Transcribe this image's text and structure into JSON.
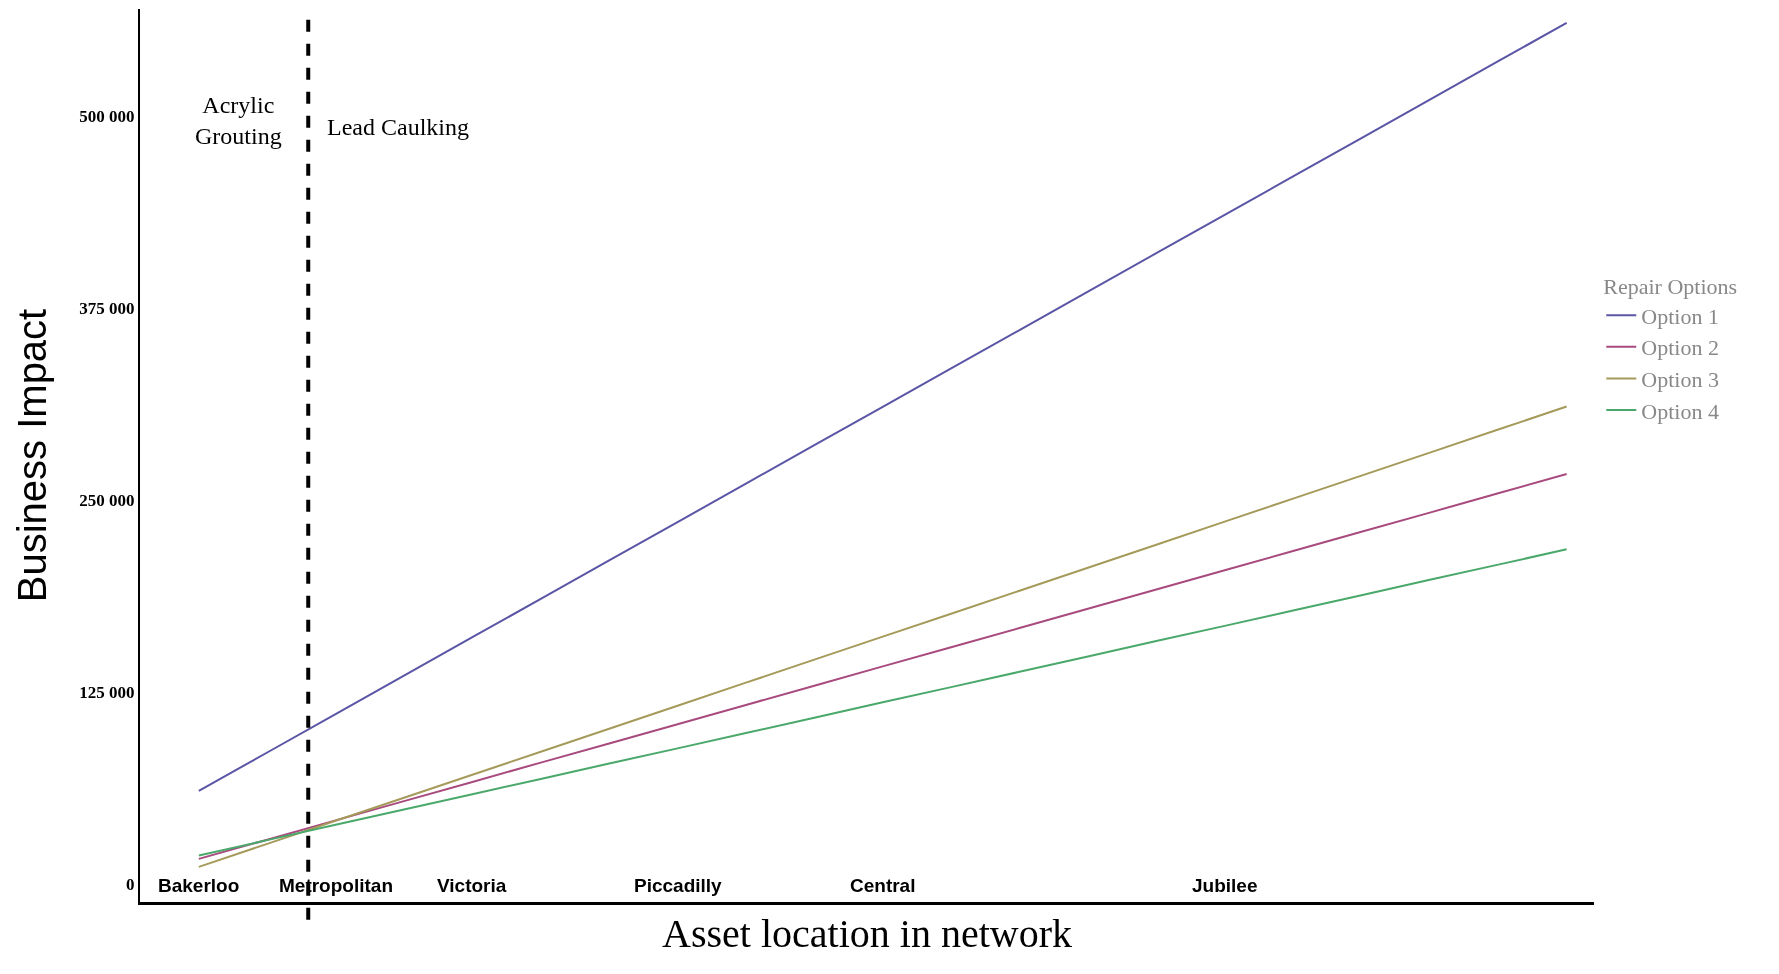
{
  "chart_data": {
    "type": "line",
    "xlabel": "Asset location in network",
    "ylabel": "Business Impact",
    "legend_title": "Repair Options",
    "categories": [
      "Bakerloo",
      null,
      "Metropolitan",
      null,
      "Victoria",
      null,
      null,
      "Piccadilly",
      null,
      null,
      "Central",
      null,
      null,
      null,
      null,
      "Jubilee",
      null,
      null,
      null,
      null,
      null
    ],
    "series": [
      {
        "name": "Option 1",
        "color": "#5a55a5",
        "values": [
          60600,
          85600,
          110600,
          135700,
          160700,
          185700,
          210700,
          235700,
          260800,
          285800,
          310800,
          335800,
          360800,
          385900,
          410900,
          435900,
          460900,
          485900,
          511000,
          536000,
          561000
        ]
      },
      {
        "name": "Option 2",
        "color": "#a84a7e",
        "values": [
          16300,
          28800,
          41400,
          53900,
          66400,
          79000,
          91500,
          104000,
          116600,
          129100,
          141700,
          154200,
          166700,
          179300,
          191800,
          204300,
          216900,
          229400,
          241900,
          254500,
          267000
        ]
      },
      {
        "name": "Option 3",
        "color": "#a59a5a",
        "values": [
          11100,
          26100,
          41100,
          56100,
          71100,
          86100,
          101100,
          116100,
          131100,
          146100,
          161100,
          176000,
          191000,
          206000,
          221000,
          236000,
          251000,
          266000,
          281000,
          296000,
          311000
        ]
      },
      {
        "name": "Option 4",
        "color": "#4aa86a",
        "values": [
          18500,
          28500,
          38500,
          48400,
          58400,
          68400,
          78400,
          88300,
          98300,
          108300,
          118300,
          128200,
          138200,
          148200,
          158200,
          168100,
          178100,
          188100,
          198100,
          208000,
          218000
        ]
      }
    ],
    "ylim": [
      -11800,
      570000
    ],
    "yticks": [
      0,
      {
        "value": 125000,
        "label": "125 000"
      },
      {
        "value": 250000,
        "label": "250 000"
      },
      {
        "value": 375000,
        "label": "375 000"
      },
      {
        "value": 500000,
        "label": "500 000"
      }
    ],
    "annotations": [
      "Acrylic\nGrouting",
      "Lead Caulking"
    ],
    "legend": "right",
    "marker": "none",
    "line_style": "solid"
  }
}
